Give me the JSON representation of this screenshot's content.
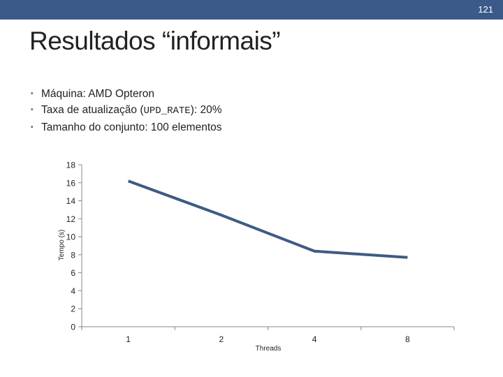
{
  "slide": {
    "page_number": "121",
    "title": "Resultados “informais”",
    "bullets": [
      {
        "text": "Máquina: AMD Opteron"
      },
      {
        "text_before": "Taxa de atualização (",
        "code": "UPD_RATE",
        "text_after": "): 20%"
      },
      {
        "text": "Tamanho do conjunto: 100 elementos"
      }
    ]
  },
  "colors": {
    "header_bar": "#3b5a8a",
    "series_line": "#3e5b84",
    "axis": "#888888"
  },
  "chart_data": {
    "type": "line",
    "categories": [
      "1",
      "2",
      "4",
      "8"
    ],
    "series": [
      {
        "values": [
          16.2,
          12.4,
          8.4,
          7.7
        ]
      }
    ],
    "xlabel": "Threads",
    "ylabel": "Tempo (s)",
    "ylim": [
      0,
      18
    ],
    "yticks": [
      0,
      2,
      4,
      6,
      8,
      10,
      12,
      14,
      16,
      18
    ],
    "grid": false,
    "legend": "none"
  }
}
